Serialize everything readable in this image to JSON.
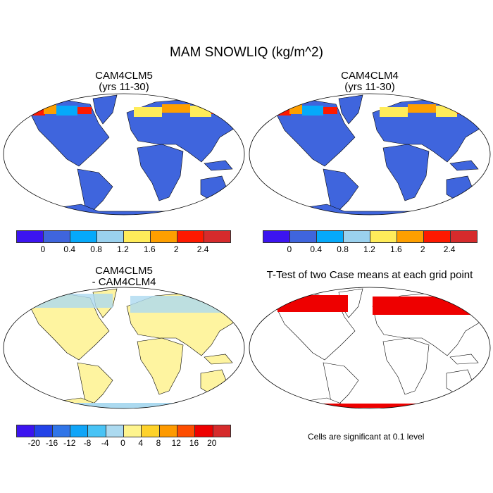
{
  "title": "MAM SNOWLIQ (kg/m^2)",
  "panels": [
    {
      "title": "CAM4CLM5",
      "subtitle": "(yrs 11-30)"
    },
    {
      "title": "CAM4CLM4",
      "subtitle": "(yrs 11-30)"
    },
    {
      "title": "CAM4CLM5",
      "subtitle": "- CAM4CLM4"
    },
    {
      "title": "T-Test of two Case means at each grid point"
    }
  ],
  "colorbar_abs": {
    "colors": [
      "#3c14f0",
      "#3f65dd",
      "#05a9fa",
      "#9ad1ee",
      "#ffec5a",
      "#fe9f00",
      "#fe1900",
      "#d62b2c"
    ],
    "ticks": [
      "0",
      "0.4",
      "0.8",
      "1.2",
      "1.6",
      "2",
      "2.4"
    ]
  },
  "colorbar_diff": {
    "colors": [
      "#3c14f0",
      "#2343e8",
      "#3075e8",
      "#10a5f8",
      "#48c3f5",
      "#acdaf0",
      "#fef48e",
      "#fed22a",
      "#fe9a00",
      "#fe4d00",
      "#ee0000",
      "#d62b2c"
    ],
    "ticks": [
      "-20",
      "-16",
      "-12",
      "-8",
      "-4",
      "0",
      "4",
      "8",
      "12",
      "16",
      "20"
    ]
  },
  "significance_note": "Cells are significant at 0.1 level",
  "colors": {
    "land_abs": "#3f65dd",
    "land_diff": "#fef4a0",
    "significant": "#ee0000",
    "ocean": "#ffffff"
  }
}
